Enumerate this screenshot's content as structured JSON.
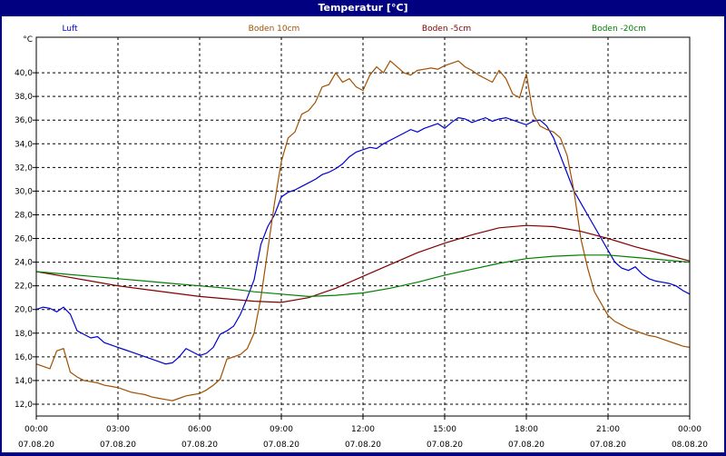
{
  "window": {
    "title": "Temperatur [°C]"
  },
  "chart_data": {
    "type": "line",
    "title": "Temperatur [°C]",
    "ylabel": "°C",
    "ylim": [
      11,
      43
    ],
    "yticks": [
      "12,0",
      "14,0",
      "16,0",
      "18,0",
      "20,0",
      "22,0",
      "24,0",
      "26,0",
      "28,0",
      "30,0",
      "32,0",
      "34,0",
      "36,0",
      "38,0",
      "40,0"
    ],
    "xlim": [
      0,
      24
    ],
    "xticks": [
      {
        "time": "00:00",
        "date": "07.08.20"
      },
      {
        "time": "03:00",
        "date": "07.08.20"
      },
      {
        "time": "06:00",
        "date": "07.08.20"
      },
      {
        "time": "09:00",
        "date": "07.08.20"
      },
      {
        "time": "12:00",
        "date": "07.08.20"
      },
      {
        "time": "15:00",
        "date": "07.08.20"
      },
      {
        "time": "18:00",
        "date": "07.08.20"
      },
      {
        "time": "21:00",
        "date": "07.08.20"
      },
      {
        "time": "00:00",
        "date": "08.08.20"
      }
    ],
    "grid": true,
    "legend_position": "top",
    "series": [
      {
        "name": "Luft",
        "color": "#0000d0",
        "x": [
          0,
          0.25,
          0.5,
          0.75,
          1,
          1.25,
          1.5,
          1.75,
          2,
          2.25,
          2.5,
          2.75,
          3,
          3.25,
          3.5,
          3.75,
          4,
          4.25,
          4.5,
          4.75,
          5,
          5.25,
          5.5,
          5.75,
          6,
          6.25,
          6.5,
          6.75,
          7,
          7.25,
          7.5,
          7.75,
          8,
          8.25,
          8.5,
          8.75,
          9,
          9.25,
          9.5,
          9.75,
          10,
          10.25,
          10.5,
          10.75,
          11,
          11.25,
          11.5,
          11.75,
          12,
          12.25,
          12.5,
          12.75,
          13,
          13.25,
          13.5,
          13.75,
          14,
          14.25,
          14.5,
          14.75,
          15,
          15.25,
          15.5,
          15.75,
          16,
          16.25,
          16.5,
          16.75,
          17,
          17.25,
          17.5,
          17.75,
          18,
          18.25,
          18.5,
          18.75,
          19,
          19.25,
          19.5,
          19.75,
          20,
          20.25,
          20.5,
          20.75,
          21,
          21.25,
          21.5,
          21.75,
          22,
          22.25,
          22.5,
          22.75,
          23,
          23.25,
          23.5,
          23.75,
          24
        ],
        "values": [
          20.0,
          20.2,
          20.1,
          19.8,
          20.2,
          19.6,
          18.2,
          17.9,
          17.6,
          17.7,
          17.2,
          17.0,
          16.8,
          16.6,
          16.4,
          16.2,
          16.0,
          15.8,
          15.6,
          15.4,
          15.5,
          16.0,
          16.7,
          16.4,
          16.1,
          16.3,
          16.8,
          17.9,
          18.2,
          18.6,
          19.6,
          21.0,
          22.5,
          25.5,
          27.0,
          28.0,
          29.5,
          29.9,
          30.1,
          30.4,
          30.7,
          31.0,
          31.4,
          31.6,
          31.9,
          32.3,
          32.9,
          33.3,
          33.5,
          33.7,
          33.6,
          34.0,
          34.3,
          34.6,
          34.9,
          35.2,
          35.0,
          35.3,
          35.5,
          35.7,
          35.3,
          35.8,
          36.2,
          36.1,
          35.8,
          36.0,
          36.2,
          35.9,
          36.1,
          36.2,
          36.0,
          35.8,
          35.6,
          35.9,
          36.0,
          35.5,
          34.5,
          33.0,
          31.5,
          30.0,
          29.0,
          28.0,
          27.0,
          26.0,
          25.0,
          24.0,
          23.5,
          23.3,
          23.6,
          23.0,
          22.6,
          22.4,
          22.3,
          22.2,
          22.0,
          21.6,
          21.3
        ]
      },
      {
        "name": "Boden 10cm",
        "color": "#a05000",
        "x": [
          0,
          0.25,
          0.5,
          0.75,
          1,
          1.25,
          1.5,
          1.75,
          2,
          2.25,
          2.5,
          2.75,
          3,
          3.25,
          3.5,
          3.75,
          4,
          4.25,
          4.5,
          4.75,
          5,
          5.25,
          5.5,
          5.75,
          6,
          6.25,
          6.5,
          6.75,
          7,
          7.25,
          7.5,
          7.75,
          8,
          8.25,
          8.5,
          8.75,
          9,
          9.25,
          9.5,
          9.75,
          10,
          10.25,
          10.5,
          10.75,
          11,
          11.25,
          11.5,
          11.75,
          12,
          12.25,
          12.5,
          12.75,
          13,
          13.25,
          13.5,
          13.75,
          14,
          14.25,
          14.5,
          14.75,
          15,
          15.25,
          15.5,
          15.75,
          16,
          16.25,
          16.5,
          16.75,
          17,
          17.25,
          17.5,
          17.75,
          18,
          18.25,
          18.5,
          18.75,
          19,
          19.25,
          19.5,
          19.75,
          20,
          20.25,
          20.5,
          20.75,
          21,
          21.25,
          21.5,
          21.75,
          22,
          22.25,
          22.5,
          22.75,
          23,
          23.25,
          23.5,
          23.75,
          24
        ],
        "values": [
          15.4,
          15.2,
          15.0,
          16.5,
          16.7,
          14.7,
          14.3,
          14.0,
          13.9,
          13.8,
          13.6,
          13.5,
          13.4,
          13.2,
          13.0,
          12.9,
          12.8,
          12.6,
          12.5,
          12.4,
          12.3,
          12.5,
          12.7,
          12.8,
          12.9,
          13.2,
          13.6,
          14.1,
          15.8,
          16.0,
          16.2,
          16.7,
          18.0,
          21.0,
          25.0,
          29.0,
          32.5,
          34.5,
          35.0,
          36.5,
          36.8,
          37.5,
          38.8,
          39.0,
          40.0,
          39.2,
          39.5,
          38.8,
          38.5,
          39.8,
          40.5,
          40.0,
          41.0,
          40.5,
          40.0,
          39.8,
          40.2,
          40.3,
          40.4,
          40.3,
          40.6,
          40.8,
          41.0,
          40.5,
          40.2,
          39.8,
          39.5,
          39.2,
          40.2,
          39.5,
          38.2,
          37.9,
          39.9,
          36.5,
          35.5,
          35.2,
          35.0,
          34.5,
          33.0,
          30.0,
          26.0,
          23.5,
          21.5,
          20.5,
          19.5,
          19.0,
          18.7,
          18.4,
          18.2,
          18.0,
          17.8,
          17.7,
          17.5,
          17.3,
          17.1,
          16.9,
          16.8
        ]
      },
      {
        "name": "Boden -5cm",
        "color": "#800000",
        "x": [
          0,
          1,
          2,
          3,
          4,
          5,
          6,
          7,
          8,
          9,
          10,
          11,
          12,
          13,
          14,
          15,
          16,
          17,
          18,
          19,
          20,
          21,
          22,
          23,
          24
        ],
        "values": [
          23.2,
          22.8,
          22.4,
          22.0,
          21.7,
          21.4,
          21.1,
          20.9,
          20.7,
          20.6,
          21.0,
          21.8,
          22.8,
          23.8,
          24.8,
          25.6,
          26.3,
          26.9,
          27.1,
          27.0,
          26.6,
          26.0,
          25.3,
          24.7,
          24.1
        ]
      },
      {
        "name": "Boden -20cm",
        "color": "#008000",
        "x": [
          0,
          1,
          2,
          3,
          4,
          5,
          6,
          7,
          8,
          9,
          10,
          11,
          12,
          13,
          14,
          15,
          16,
          17,
          18,
          19,
          20,
          21,
          22,
          23,
          24
        ],
        "values": [
          23.2,
          23.0,
          22.8,
          22.6,
          22.4,
          22.2,
          22.0,
          21.8,
          21.5,
          21.3,
          21.1,
          21.2,
          21.4,
          21.8,
          22.3,
          22.9,
          23.4,
          23.9,
          24.3,
          24.5,
          24.6,
          24.6,
          24.4,
          24.2,
          24.0
        ]
      }
    ]
  }
}
